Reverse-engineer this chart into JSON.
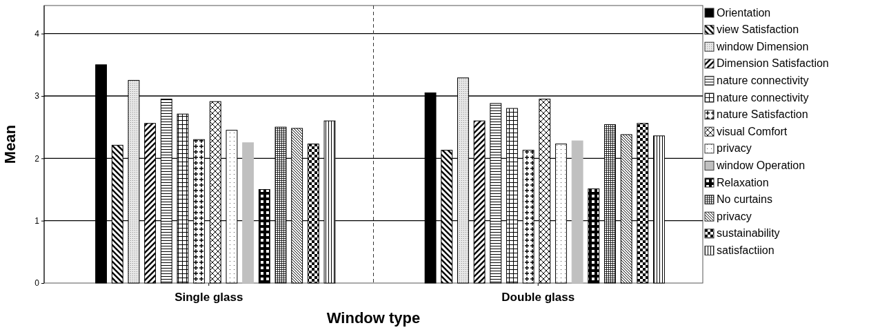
{
  "chart_data": {
    "type": "bar",
    "xlabel": "Window type",
    "ylabel": "Mean",
    "categories": [
      "Single glass",
      "Double glass"
    ],
    "series": [
      {
        "name": "Orientation",
        "color": "#000000",
        "values": [
          3.5,
          3.05
        ]
      },
      {
        "name": "view Satisfaction",
        "color": "#000000",
        "values": [
          2.21,
          2.13
        ]
      },
      {
        "name": "window Dimension",
        "color": "#000000",
        "values": [
          3.25,
          3.29
        ]
      },
      {
        "name": "Dimension Satisfaction",
        "color": "#000000",
        "values": [
          2.56,
          2.6
        ]
      },
      {
        "name": "nature connectivity",
        "color": "#000000",
        "values": [
          2.95,
          2.88
        ]
      },
      {
        "name": "nature connectivity",
        "color": "#000000",
        "values": [
          2.71,
          2.8
        ]
      },
      {
        "name": "nature Satisfaction",
        "color": "#000000",
        "values": [
          2.3,
          2.13
        ]
      },
      {
        "name": "visual Comfort",
        "color": "#000000",
        "values": [
          2.91,
          2.95
        ]
      },
      {
        "name": "privacy",
        "color": "#000000",
        "values": [
          2.45,
          2.23
        ]
      },
      {
        "name": "window Operation",
        "color": "#c0c0c0",
        "values": [
          2.25,
          2.28
        ]
      },
      {
        "name": "Relaxation",
        "color": "#000000",
        "values": [
          1.5,
          1.51
        ]
      },
      {
        "name": "No curtains",
        "color": "#000000",
        "values": [
          2.5,
          2.54
        ]
      },
      {
        "name": "privacy",
        "color": "#000000",
        "values": [
          2.48,
          2.38
        ]
      },
      {
        "name": "sustainability",
        "color": "#000000",
        "values": [
          2.23,
          2.56
        ]
      },
      {
        "name": "satisfactiion",
        "color": "#000000",
        "values": [
          2.6,
          2.36
        ]
      }
    ],
    "ylim": [
      0,
      4.45
    ],
    "yticks": [
      0,
      1,
      2,
      3,
      4
    ],
    "grid": "y",
    "legend": "right"
  }
}
